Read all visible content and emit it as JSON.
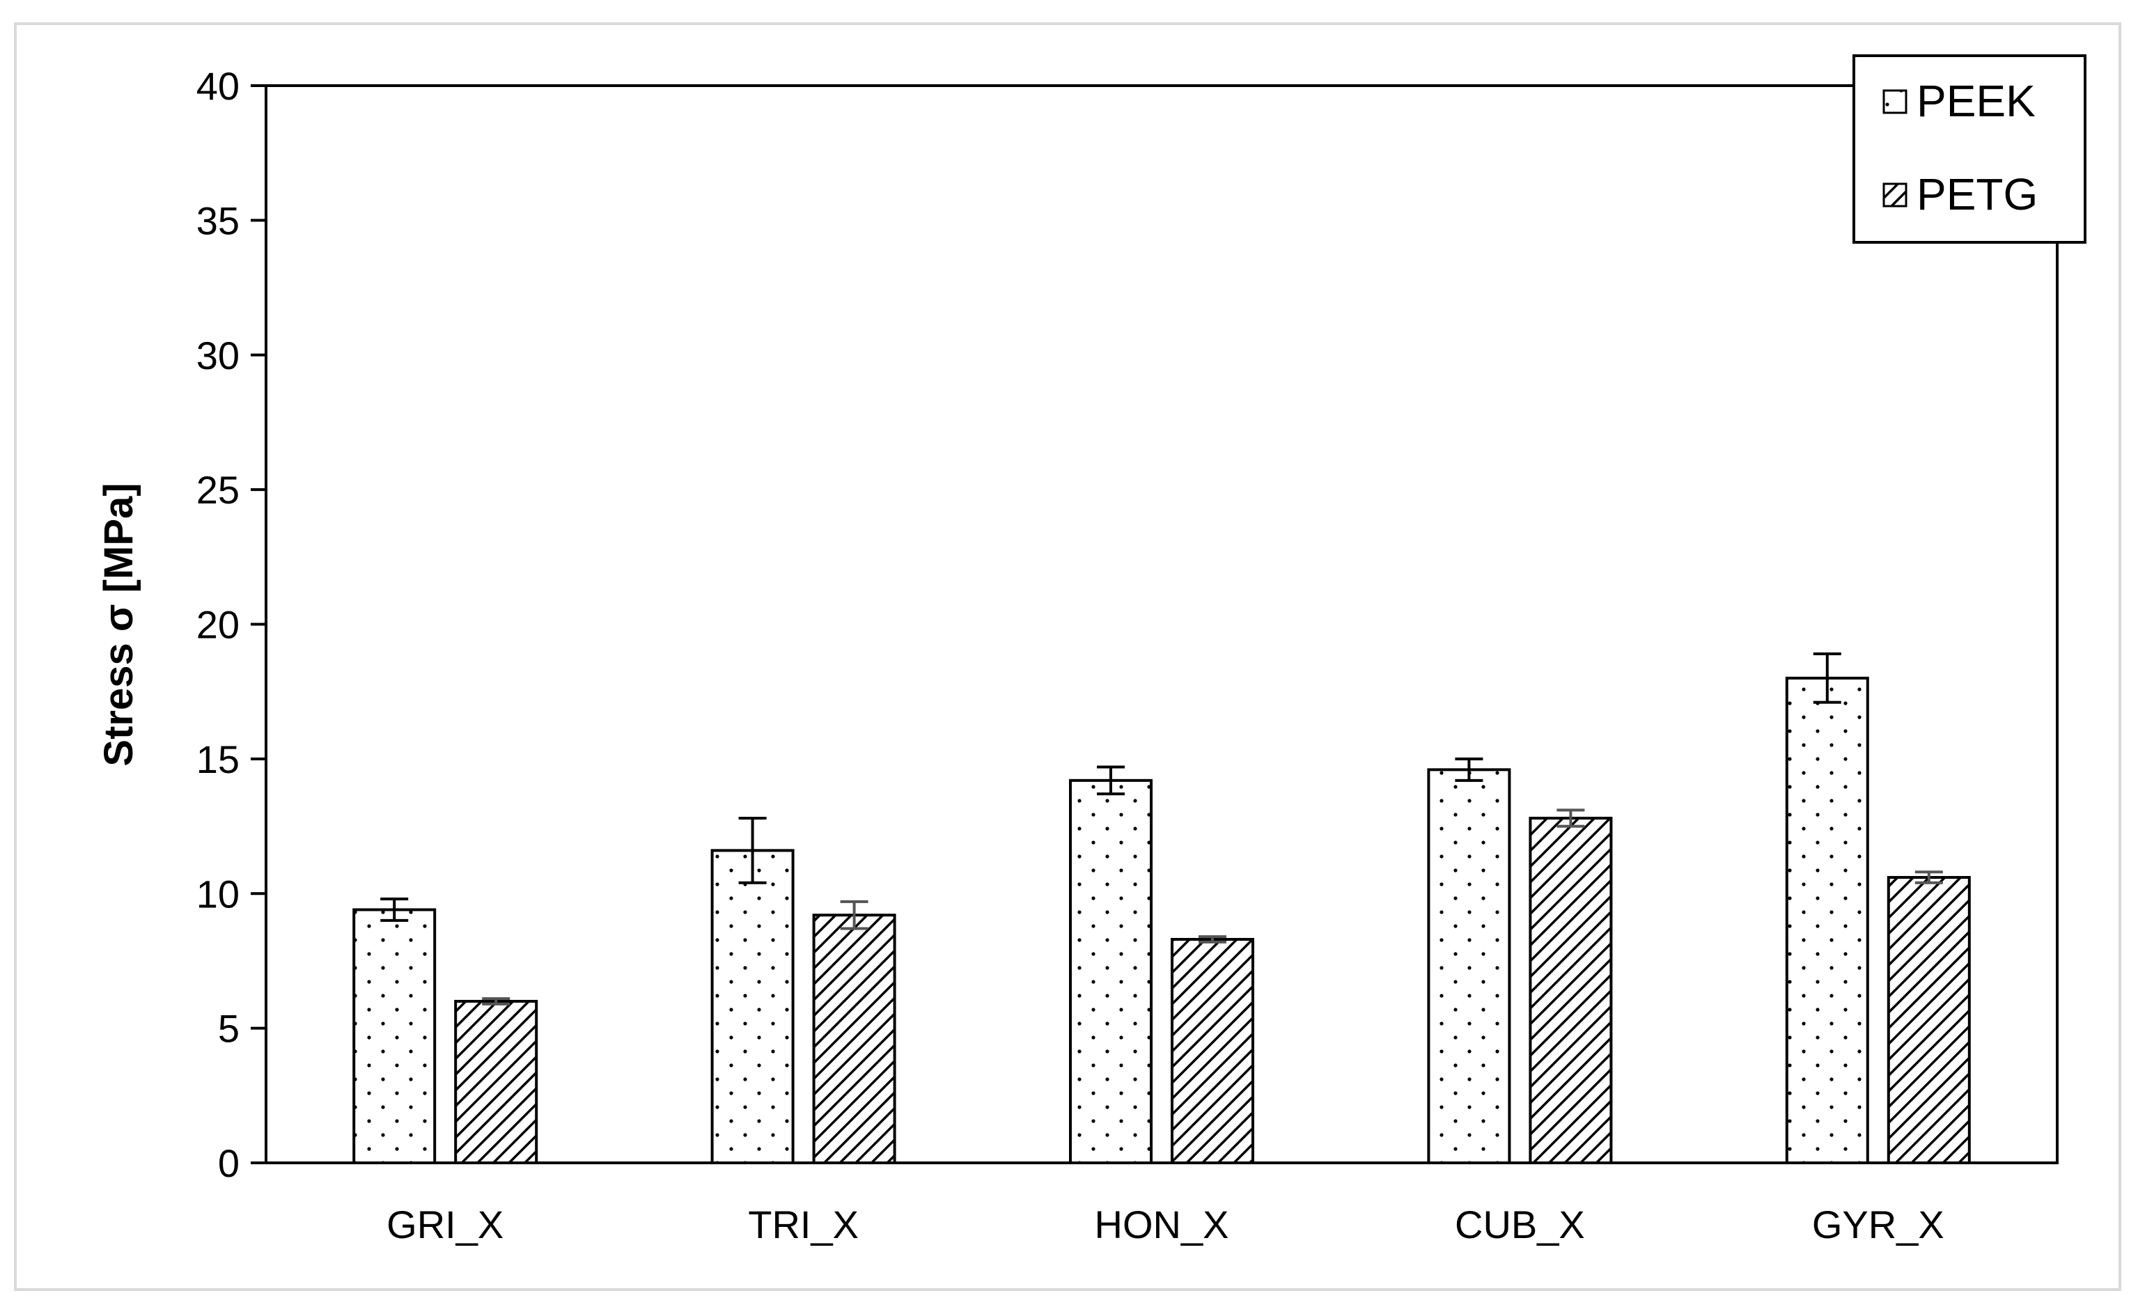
{
  "chart_data": {
    "type": "bar",
    "categories": [
      "GRI_X",
      "TRI_X",
      "HON_X",
      "CUB_X",
      "GYR_X"
    ],
    "series": [
      {
        "name": "PEEK",
        "pattern": "dotted",
        "values": [
          9.4,
          11.6,
          14.2,
          14.6,
          18.0
        ],
        "errors": [
          0.4,
          1.2,
          0.5,
          0.4,
          0.9
        ]
      },
      {
        "name": "PETG",
        "pattern": "hatched",
        "values": [
          6.0,
          9.2,
          8.3,
          12.8,
          10.6
        ],
        "errors": [
          0.1,
          0.5,
          0.1,
          0.3,
          0.2
        ]
      }
    ],
    "title": "",
    "xlabel": "",
    "ylabel": "Stress σ [MPa]",
    "ylim": [
      0,
      40
    ],
    "yticks": [
      0,
      5,
      10,
      15,
      20,
      25,
      30,
      35,
      40
    ],
    "grid": false,
    "legend_position": "top-right"
  },
  "colors": {
    "bar_stroke": "#000000",
    "bar_fill": "#ffffff",
    "error_bar_peek": "#000000",
    "error_bar_petg": "#555555",
    "frame_border": "#d9d9d9"
  }
}
